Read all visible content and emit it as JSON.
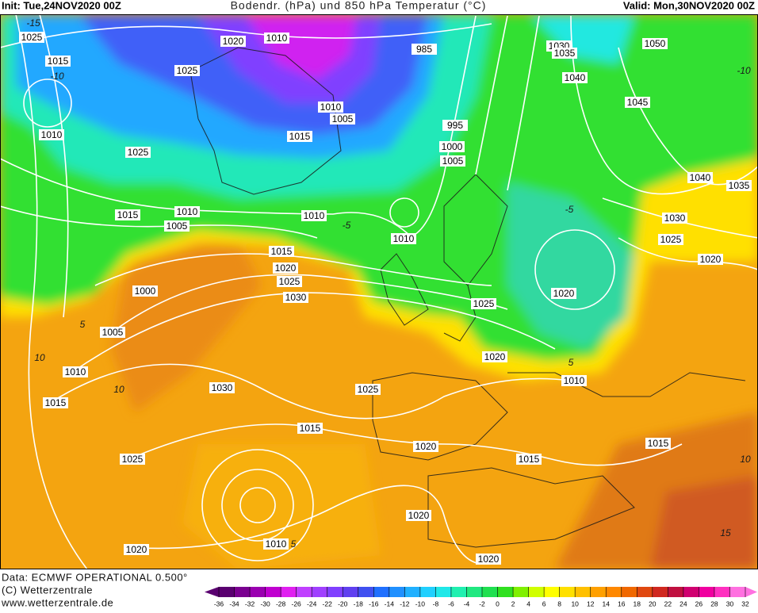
{
  "header": {
    "init": "Init: Tue,24NOV2020 00Z",
    "title": "Bodendr. (hPa) und 850 hPa Temperatur (°C)",
    "valid": "Valid: Mon,30NOV2020 00Z"
  },
  "footer": {
    "data_source": "Data: ECMWF OPERATIONAL 0.500°",
    "copyright": "(C) Wetterzentrale",
    "website": "www.wetterzentrale.de"
  },
  "colorbar": {
    "labels": [
      "-36",
      "-34",
      "-32",
      "-30",
      "-28",
      "-26",
      "-24",
      "-22",
      "-20",
      "-18",
      "-16",
      "-14",
      "-12",
      "-10",
      "-8",
      "-6",
      "-4",
      "-2",
      "0",
      "2",
      "4",
      "6",
      "8",
      "10",
      "12",
      "14",
      "16",
      "18",
      "20",
      "22",
      "24",
      "26",
      "28",
      "30",
      "32"
    ],
    "colors": [
      "#5a0070",
      "#7a0090",
      "#9a00b0",
      "#c000d0",
      "#e020f0",
      "#c040ff",
      "#a040ff",
      "#8040ff",
      "#6040f0",
      "#4050f0",
      "#2070ff",
      "#2090ff",
      "#20b0ff",
      "#20d0ff",
      "#20e8e8",
      "#20f0b0",
      "#20e880",
      "#20e050",
      "#30e020",
      "#80f000",
      "#d0ff00",
      "#ffff00",
      "#ffe000",
      "#ffc000",
      "#ffa000",
      "#ff8800",
      "#f06800",
      "#e04810",
      "#d02820",
      "#c01040",
      "#d00070",
      "#f000a0",
      "#ff30c0",
      "#ff70e0"
    ]
  },
  "isobar_labels": [
    "1025",
    "1020",
    "1010",
    "985",
    "1030",
    "1035",
    "1050",
    "1015",
    "1025",
    "1040",
    "1045",
    "1010",
    "1005",
    "995",
    "1010",
    "1015",
    "1000",
    "1025",
    "1005",
    "1040",
    "1035",
    "1015",
    "1010",
    "1010",
    "1005",
    "1030",
    "1010",
    "1025",
    "1020",
    "1015",
    "1020",
    "1025",
    "1030",
    "1000",
    "1025",
    "1020",
    "1005",
    "1020",
    "1010",
    "1010",
    "1030",
    "1025",
    "1015",
    "1015",
    "1020",
    "1015",
    "1015",
    "1025",
    "1020",
    "1010",
    "1020",
    "1020"
  ],
  "temperature_labels": [
    "-15",
    "-10",
    "-10",
    "-5",
    "-5",
    "5",
    "10",
    "10",
    "5",
    "5",
    "10",
    "15"
  ]
}
